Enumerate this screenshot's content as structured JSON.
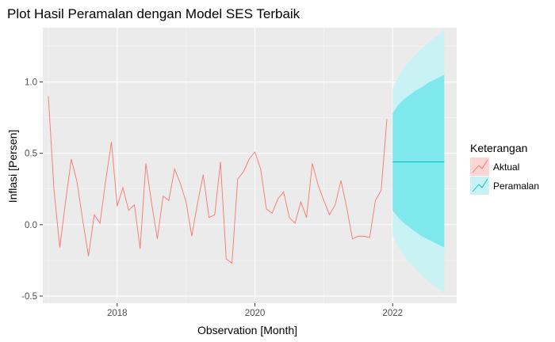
{
  "chart_data": {
    "type": "line",
    "title": "Plot Hasil Peramalan dengan Model SES Terbaik",
    "xlabel": "Observation [Month]",
    "ylabel": "Inflasi [Persen]",
    "xlim": [
      2016.92,
      2022.93
    ],
    "ylim": [
      -0.55,
      1.38
    ],
    "x_ticks": [
      2018,
      2020,
      2022
    ],
    "x_tick_labels": [
      "2018",
      "2020",
      "2022"
    ],
    "y_ticks": [
      -0.5,
      0.0,
      0.5,
      1.0
    ],
    "y_tick_labels": [
      "-0.5",
      "0.0",
      "0.5",
      "1.0"
    ],
    "grid": true,
    "legend": {
      "title": "Keterangan",
      "position": "right",
      "entries": [
        "Aktual",
        "Peramalan"
      ]
    },
    "series": [
      {
        "name": "Aktual",
        "color": "#f8766d",
        "start": 2017.0,
        "step": 0.08333,
        "values": [
          0.9,
          0.24,
          -0.16,
          0.16,
          0.46,
          0.3,
          0.03,
          -0.22,
          0.07,
          0.01,
          0.31,
          0.58,
          0.13,
          0.26,
          0.1,
          0.14,
          -0.17,
          0.43,
          0.15,
          -0.1,
          0.2,
          0.17,
          0.39,
          0.29,
          0.16,
          -0.08,
          0.15,
          0.35,
          0.05,
          0.07,
          0.44,
          -0.24,
          -0.27,
          0.32,
          0.37,
          0.46,
          0.51,
          0.39,
          0.11,
          0.08,
          0.18,
          0.23,
          0.05,
          0.01,
          0.16,
          0.05,
          0.43,
          0.28,
          0.17,
          0.07,
          0.14,
          0.31,
          0.12,
          -0.1,
          -0.08,
          -0.08,
          -0.09,
          0.17,
          0.24,
          0.74
        ]
      },
      {
        "name": "Peramalan",
        "color": "#00bfc4",
        "x": [
          2022.0,
          2022.75
        ],
        "values": [
          0.44,
          0.44
        ],
        "interval_80": {
          "x": [
            2022.0,
            2022.083,
            2022.167,
            2022.25,
            2022.333,
            2022.417,
            2022.5,
            2022.583,
            2022.667,
            2022.75
          ],
          "lower": [
            0.1,
            0.05,
            0.01,
            -0.02,
            -0.05,
            -0.08,
            -0.1,
            -0.12,
            -0.14,
            -0.16
          ],
          "upper": [
            0.78,
            0.84,
            0.88,
            0.91,
            0.94,
            0.96,
            0.99,
            1.01,
            1.03,
            1.05
          ]
        },
        "interval_95": {
          "x": [
            2022.0,
            2022.083,
            2022.167,
            2022.25,
            2022.333,
            2022.417,
            2022.5,
            2022.583,
            2022.667,
            2022.75
          ],
          "lower": [
            -0.07,
            -0.16,
            -0.22,
            -0.27,
            -0.31,
            -0.35,
            -0.39,
            -0.42,
            -0.45,
            -0.48
          ],
          "upper": [
            0.95,
            1.04,
            1.1,
            1.15,
            1.19,
            1.23,
            1.27,
            1.3,
            1.33,
            1.37
          ]
        }
      }
    ]
  },
  "colors": {
    "panel_background": "#ebebeb",
    "grid_major": "#ffffff",
    "grid_minor": "#f5f5f5",
    "actual_line": "#f8766d",
    "forecast_line": "#00bfc4",
    "band_80": "#7ee8ec",
    "band_95": "#c8f2f4"
  }
}
